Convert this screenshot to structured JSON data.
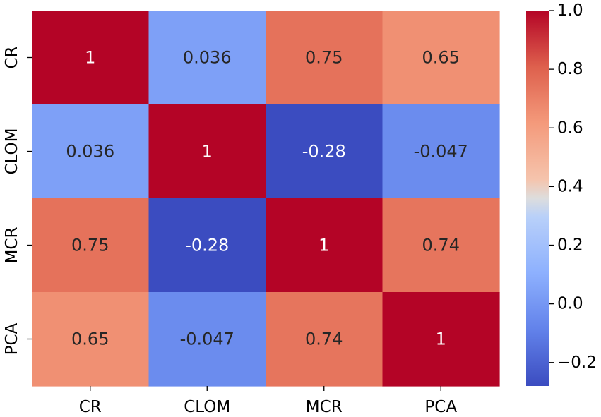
{
  "chart_data": {
    "type": "heatmap",
    "title": "",
    "xlabel": "",
    "ylabel": "",
    "x_categories": [
      "CR",
      "CLOM",
      "MCR",
      "PCA"
    ],
    "y_categories": [
      "CR",
      "CLOM",
      "MCR",
      "PCA"
    ],
    "values": [
      [
        1,
        0.036,
        0.75,
        0.65
      ],
      [
        0.036,
        1,
        -0.28,
        -0.047
      ],
      [
        0.75,
        -0.28,
        1,
        0.74
      ],
      [
        0.65,
        -0.047,
        0.74,
        1
      ]
    ],
    "annotations": [
      [
        "1",
        "0.036",
        "0.75",
        "0.65"
      ],
      [
        "0.036",
        "1",
        "-0.28",
        "-0.047"
      ],
      [
        "0.75",
        "-0.28",
        "1",
        "0.74"
      ],
      [
        "0.65",
        "-0.047",
        "0.74",
        "1"
      ]
    ],
    "colormap": "coolwarm",
    "vmin": -0.28,
    "vmax": 1.0,
    "colorbar": {
      "ticks": [
        1.0,
        0.8,
        0.6,
        0.4,
        0.2,
        0.0,
        -0.2
      ],
      "tick_labels": [
        "1.0",
        "0.8",
        "0.6",
        "0.4",
        "0.2",
        "0.0",
        "−0.2"
      ]
    }
  }
}
